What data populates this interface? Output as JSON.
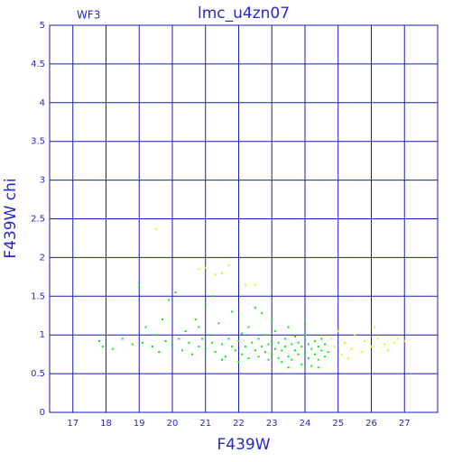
{
  "chart_data": {
    "type": "scatter",
    "title": "lmc_u4zn07",
    "annotation": "WF3",
    "x_label": "F439W",
    "y_label": "F439W chi",
    "xlim": [
      16.3,
      28
    ],
    "ylim": [
      0,
      5
    ],
    "xticks": [
      17,
      18,
      19,
      20,
      21,
      22,
      23,
      24,
      25,
      26,
      27
    ],
    "yticks": [
      0,
      0.5,
      1,
      1.5,
      2,
      2.5,
      3,
      3.5,
      4,
      4.5,
      5
    ],
    "grid": true,
    "series": [
      {
        "name": "green",
        "color": "#00ee00",
        "x": [
          17.8,
          17.9,
          18.2,
          18.5,
          18.8,
          19.0,
          19.1,
          19.2,
          19.4,
          19.5,
          19.6,
          19.8,
          19.9,
          20.0,
          20.1,
          20.2,
          20.3,
          20.4,
          20.5,
          20.6,
          20.7,
          20.8,
          20.9,
          21.0,
          21.0,
          21.1,
          21.2,
          21.3,
          21.4,
          21.5,
          21.6,
          21.7,
          21.8,
          21.8,
          21.9,
          22.0,
          22.1,
          22.1,
          22.2,
          22.3,
          22.3,
          22.4,
          22.5,
          22.5,
          22.6,
          22.6,
          22.7,
          22.8,
          22.8,
          22.9,
          22.9,
          23.0,
          23.0,
          23.1,
          23.1,
          23.2,
          23.2,
          23.3,
          23.3,
          23.4,
          23.4,
          23.5,
          23.5,
          23.6,
          23.6,
          23.7,
          23.7,
          23.8,
          23.8,
          23.9,
          23.9,
          24.0,
          24.0,
          24.1,
          24.1,
          24.2,
          24.2,
          24.3,
          24.3,
          24.4,
          24.4,
          24.5,
          24.5,
          24.6,
          24.6,
          24.7,
          22.0,
          21.5,
          23.0,
          24.0,
          22.7,
          20.8,
          19.7,
          21.2,
          23.5,
          24.4
        ],
        "values": [
          0.92,
          0.85,
          0.82,
          0.95,
          0.88,
          1.62,
          0.9,
          1.1,
          0.85,
          1.0,
          0.78,
          0.92,
          1.45,
          0.88,
          1.55,
          0.95,
          0.8,
          1.05,
          0.9,
          0.75,
          1.2,
          0.85,
          0.95,
          1.38,
          0.82,
          1.0,
          0.9,
          0.78,
          1.15,
          0.88,
          0.72,
          0.95,
          1.3,
          0.85,
          0.8,
          0.92,
          1.02,
          0.75,
          0.85,
          0.7,
          1.1,
          0.9,
          0.8,
          1.35,
          0.95,
          0.72,
          0.85,
          0.78,
          1.0,
          0.88,
          0.68,
          0.92,
          0.75,
          0.82,
          1.05,
          0.7,
          0.9,
          0.8,
          0.65,
          0.95,
          0.85,
          0.72,
          1.1,
          0.88,
          0.68,
          0.8,
          0.98,
          0.75,
          0.9,
          0.62,
          0.85,
          0.78,
          1.0,
          0.7,
          0.88,
          0.82,
          0.6,
          0.92,
          0.75,
          0.85,
          0.68,
          0.8,
          0.95,
          0.72,
          0.88,
          0.78,
          0.65,
          0.68,
          1.2,
          1.15,
          1.28,
          1.1,
          1.2,
          1.5,
          0.58,
          0.58
        ]
      },
      {
        "name": "yellow",
        "color": "#f0f000",
        "x": [
          19.5,
          20.8,
          21.0,
          21.3,
          21.5,
          21.7,
          22.2,
          22.5,
          24.8,
          24.9,
          25.0,
          25.1,
          25.2,
          25.4,
          25.5,
          25.7,
          25.8,
          26.0,
          26.1,
          26.2,
          26.4,
          26.5,
          26.7,
          26.8,
          27.0,
          25.3
        ],
        "values": [
          2.37,
          1.85,
          1.87,
          1.78,
          1.8,
          1.9,
          1.65,
          1.65,
          0.95,
          0.85,
          1.05,
          0.75,
          0.9,
          0.82,
          1.0,
          0.78,
          0.92,
          0.85,
          1.1,
          0.95,
          0.88,
          0.8,
          0.9,
          0.95,
          0.92,
          0.7
        ]
      }
    ]
  }
}
